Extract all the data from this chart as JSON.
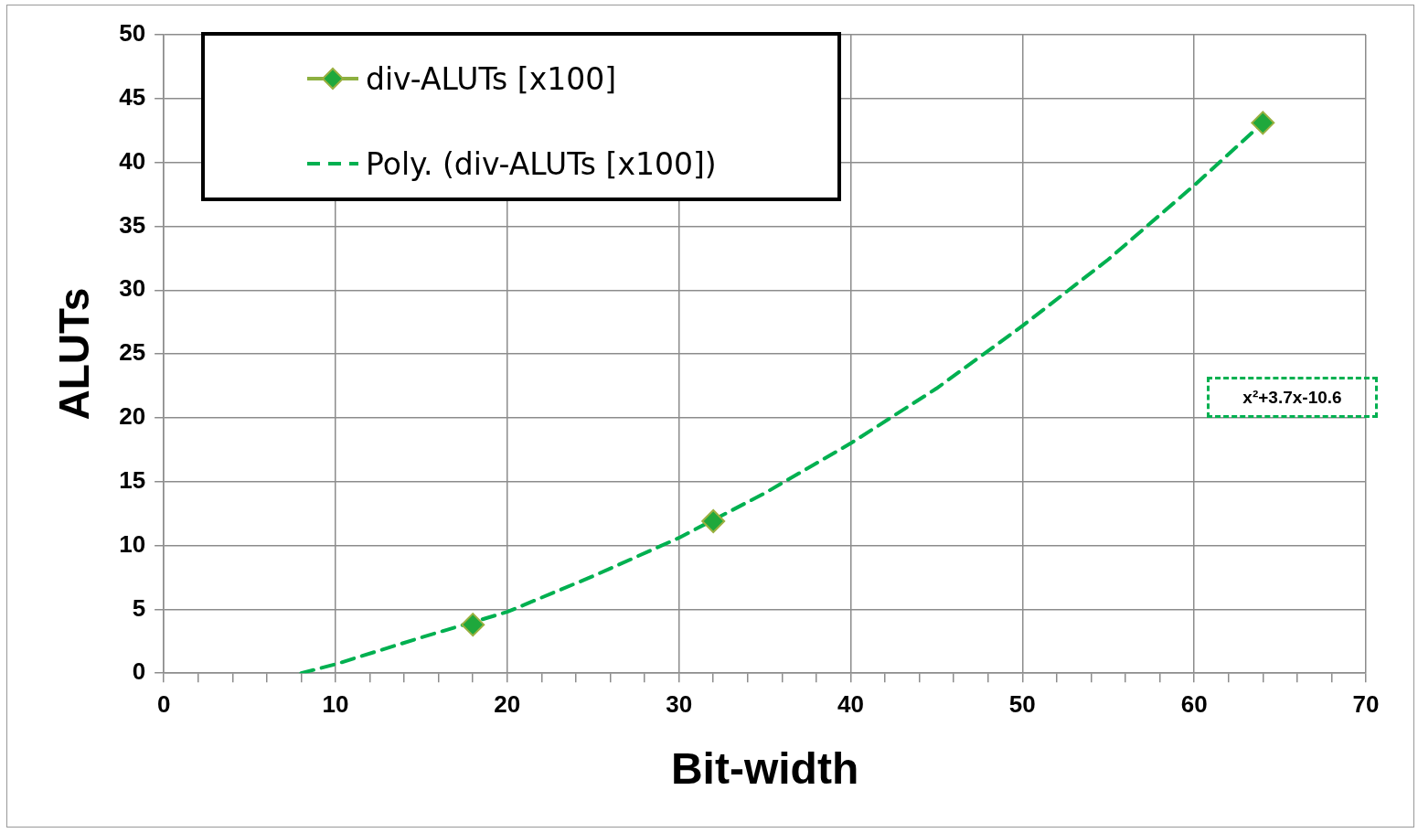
{
  "chart_data": {
    "type": "scatter",
    "xlabel": "Bit-width",
    "ylabel": "ALUTs",
    "xlim": [
      0,
      70
    ],
    "ylim": [
      0,
      50
    ],
    "xticks": [
      0,
      {
        "value": 2,
        "label": null
      },
      {
        "value": 4,
        "label": null
      },
      {
        "value": 6,
        "label": null
      },
      {
        "value": 8,
        "label": null
      },
      10,
      {
        "value": 12,
        "label": null
      },
      {
        "value": 14,
        "label": null
      },
      {
        "value": 16,
        "label": null
      },
      {
        "value": 18,
        "label": null
      },
      20,
      {
        "value": 22,
        "label": null
      },
      {
        "value": 24,
        "label": null
      },
      {
        "value": 26,
        "label": null
      },
      {
        "value": 28,
        "label": null
      },
      30,
      {
        "value": 32,
        "label": null
      },
      {
        "value": 34,
        "label": null
      },
      {
        "value": 36,
        "label": null
      },
      {
        "value": 38,
        "label": null
      },
      40,
      {
        "value": 42,
        "label": null
      },
      {
        "value": 44,
        "label": null
      },
      {
        "value": 46,
        "label": null
      },
      {
        "value": 48,
        "label": null
      },
      50,
      {
        "value": 52,
        "label": null
      },
      {
        "value": 54,
        "label": null
      },
      {
        "value": 56,
        "label": null
      },
      {
        "value": 58,
        "label": null
      },
      60,
      {
        "value": 62,
        "label": null
      },
      {
        "value": 64,
        "label": null
      },
      {
        "value": 66,
        "label": null
      },
      {
        "value": 68,
        "label": null
      },
      70
    ],
    "yticks": [
      0,
      5,
      10,
      15,
      20,
      25,
      30,
      35,
      40,
      45,
      50
    ],
    "grid": true,
    "legend": "top left",
    "annotations": [
      "x²+3.7x-10.6"
    ],
    "series": [
      {
        "name": "div-ALUTs [x100]",
        "color": "#1fa83c",
        "marker": "diamond",
        "x": [
          18,
          32,
          64
        ],
        "values": [
          3.8,
          11.9,
          43.1
        ]
      },
      {
        "name": "Poly. (div-ALUTs [x100])",
        "type": "line",
        "color": "#00b050",
        "marker": "none",
        "line_style": "dashed",
        "x": [
          8,
          10,
          15,
          20,
          25,
          30,
          35,
          40,
          45,
          50,
          55,
          60,
          64
        ],
        "values": [
          0,
          0.7,
          2.8,
          4.8,
          7.6,
          10.6,
          14.1,
          18,
          22.3,
          27.2,
          32.4,
          38.2,
          43.1
        ]
      }
    ]
  }
}
